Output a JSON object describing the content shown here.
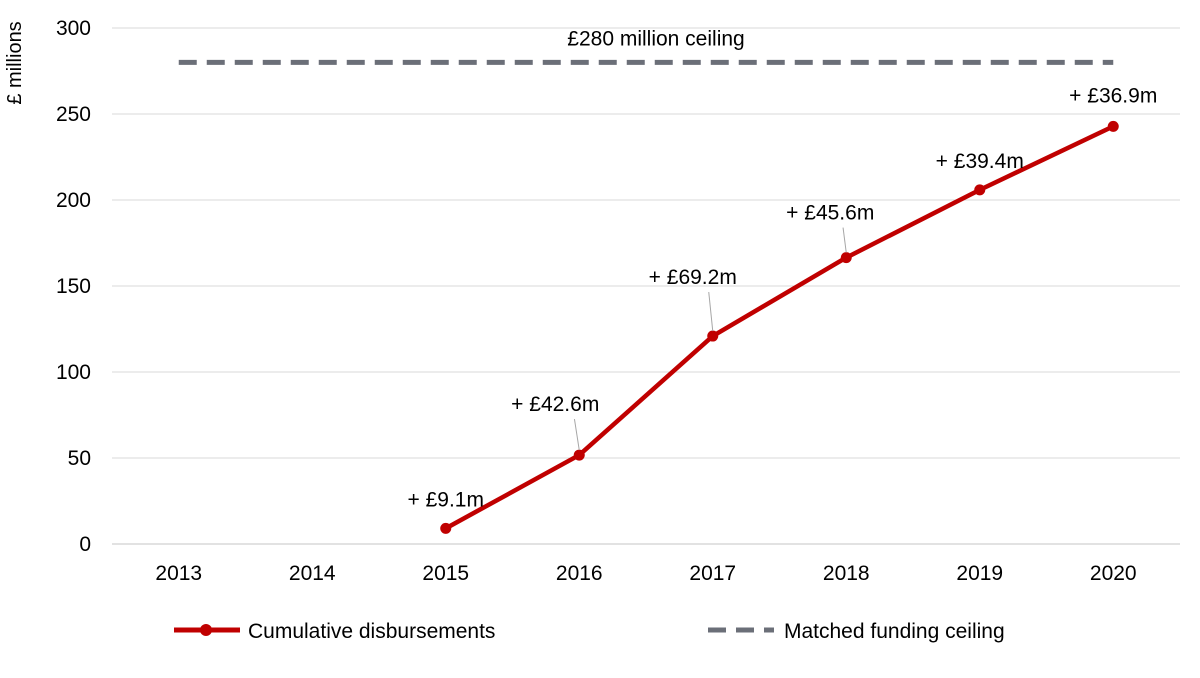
{
  "chart_data": {
    "type": "line",
    "x": [
      2013,
      2014,
      2015,
      2016,
      2017,
      2018,
      2019,
      2020
    ],
    "x_tick_labels": [
      "2013",
      "2014",
      "2015",
      "2016",
      "2017",
      "2018",
      "2019",
      "2020"
    ],
    "ylabel": "£ millions",
    "ylim": [
      0,
      300
    ],
    "y_ticks": [
      0,
      50,
      100,
      150,
      200,
      250,
      300
    ],
    "y_tick_labels": [
      "0",
      "50",
      "100",
      "150",
      "200",
      "250",
      "300"
    ],
    "grid": "horizontal",
    "legend_position": "bottom",
    "series": [
      {
        "name": "Cumulative disbursements",
        "color": "#C00000",
        "style": "solid-with-markers",
        "x": [
          2015,
          2016,
          2017,
          2018,
          2019,
          2020
        ],
        "values": [
          9.1,
          51.7,
          120.9,
          166.5,
          205.9,
          242.8
        ],
        "point_labels": [
          "+ £9.1m",
          "+ £42.6m",
          "+ £69.2m",
          "+ £45.6m",
          "+ £39.4m",
          "+ £36.9m"
        ]
      },
      {
        "name": "Matched funding ceiling",
        "color": "#6B6F78",
        "style": "dashed",
        "x": [
          2013,
          2020
        ],
        "values": [
          280,
          280
        ]
      }
    ],
    "annotations": [
      {
        "text": "£280 million ceiling",
        "x": 2016.5,
        "y": 280
      }
    ],
    "gridline_color": "#D9D9D9"
  }
}
